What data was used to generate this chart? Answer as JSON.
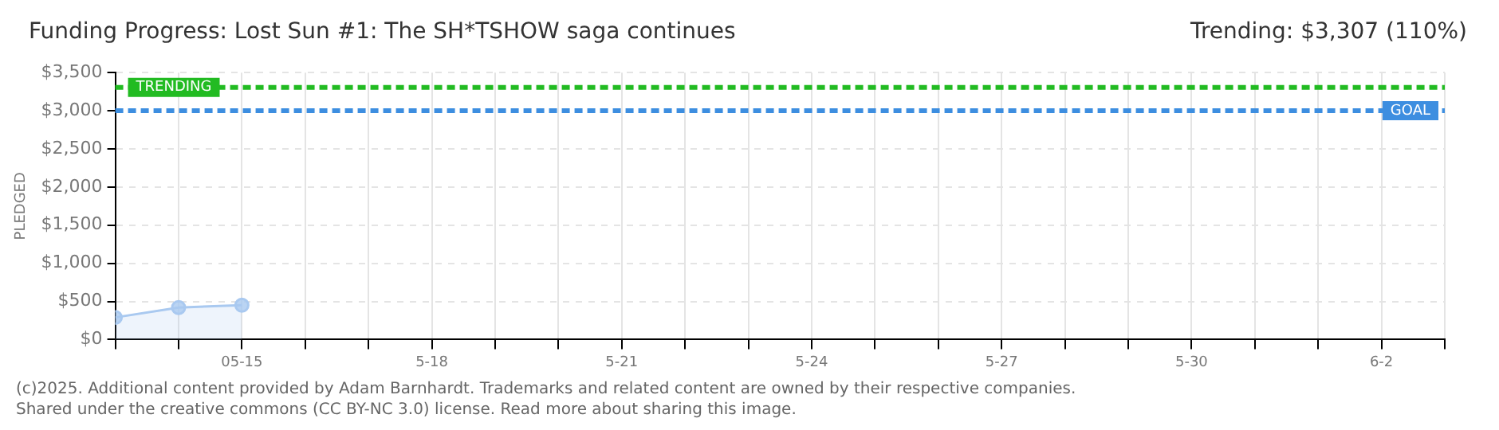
{
  "chart_data": {
    "type": "area",
    "title": "Funding Progress: Lost Sun #1: The SH*TSHOW saga continues",
    "subtitle": "Trending: $3,307 (110%)",
    "ylabel": "PLEDGED",
    "x": [
      "--05-13",
      "--05-14",
      "--05-15"
    ],
    "series": [
      {
        "color": "#a9c9f0",
        "values": [
          290,
          420,
          450
        ]
      }
    ],
    "xlim": [
      "--05-13",
      "--06-03"
    ],
    "xticks": [
      {
        "value": "--05-13",
        "label": null
      },
      {
        "value": "--05-14",
        "label": null
      },
      {
        "value": "--05-15",
        "label": "05-15"
      },
      {
        "value": "--05-16",
        "label": null
      },
      {
        "value": "--05-17",
        "label": null
      },
      {
        "value": "--05-18",
        "label": "5-18"
      },
      {
        "value": "--05-19",
        "label": null
      },
      {
        "value": "--05-20",
        "label": null
      },
      {
        "value": "--05-21",
        "label": "5-21"
      },
      {
        "value": "--05-22",
        "label": null
      },
      {
        "value": "--05-23",
        "label": null
      },
      {
        "value": "--05-24",
        "label": "5-24"
      },
      {
        "value": "--05-25",
        "label": null
      },
      {
        "value": "--05-26",
        "label": null
      },
      {
        "value": "--05-27",
        "label": "5-27"
      },
      {
        "value": "--05-28",
        "label": null
      },
      {
        "value": "--05-29",
        "label": null
      },
      {
        "value": "--05-30",
        "label": "5-30"
      },
      {
        "value": "--05-31",
        "label": null
      },
      {
        "value": "--06-01",
        "label": null
      },
      {
        "value": "--06-02",
        "label": "6-2"
      },
      {
        "value": "--06-03",
        "label": null
      }
    ],
    "ylim": [
      0,
      3500
    ],
    "yticks": [
      {
        "value": 0,
        "label": "$0"
      },
      {
        "value": 500,
        "label": "$500"
      },
      {
        "value": 1000,
        "label": "$1,000"
      },
      {
        "value": 1500,
        "label": "$1,500"
      },
      {
        "value": 2000,
        "label": "$2,000"
      },
      {
        "value": 2500,
        "label": "$2,500"
      },
      {
        "value": 3000,
        "label": "$3,000"
      },
      {
        "value": 3500,
        "label": "$3,500"
      }
    ],
    "ref_lines": [
      {
        "axis": "y",
        "value": 3307,
        "label": "TRENDING",
        "color": "#22bb22",
        "line_style": "dashed"
      },
      {
        "axis": "y",
        "value": 3000,
        "label": "GOAL",
        "color": "#3d8ee0",
        "line_style": "dashed"
      }
    ],
    "grid": true,
    "marker": "circle",
    "line_style": "solid",
    "legend": false,
    "annotations": [
      "(c)2025. Additional content provided by Adam Barnhardt. Trademarks and related content are owned by their respective companies.",
      "Shared under the creative commons (CC BY-NC 3.0) license. Read more about sharing this image."
    ]
  }
}
